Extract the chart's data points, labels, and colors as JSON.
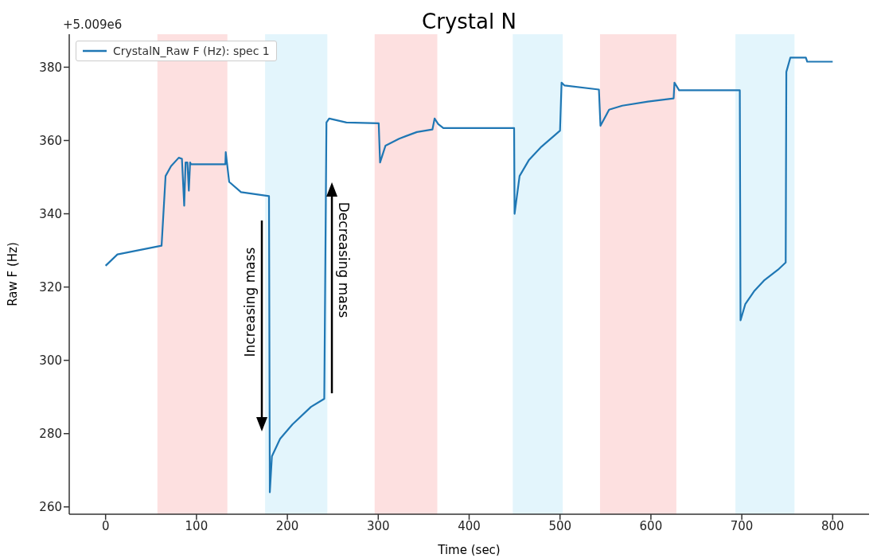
{
  "chart_data": {
    "type": "line",
    "title": "Crystal N",
    "xlabel": "Time (sec)",
    "ylabel": "Raw F (Hz)",
    "xlim": [
      -40,
      840
    ],
    "xticks": [
      0,
      100,
      200,
      300,
      400,
      500,
      600,
      700,
      800
    ],
    "ylim": [
      258,
      389
    ],
    "yticks": [
      260,
      280,
      300,
      320,
      340,
      360,
      380
    ],
    "legend": "top left",
    "marker": "none",
    "line_style": "solid",
    "series": [
      {
        "name": "CrystalN_Raw F (Hz): spec 1",
        "color": "#1f77b4",
        "x": [
          0,
          13,
          61.6,
          62,
          66,
          72,
          80.5,
          84,
          86.5,
          88,
          89,
          90,
          91.6,
          93,
          94,
          131.8,
          132.2,
          136,
          149,
          179.8,
          180.7,
          183,
          192,
          205.5,
          226,
          240.6,
          243,
          246,
          265,
          300.5,
          302,
          308,
          323,
          342.5,
          359.6,
          362,
          366,
          371.6,
          449.5,
          450,
          455.5,
          465.6,
          479.5,
          500,
          501.7,
          505,
          542.8,
          544.5,
          554,
          568.5,
          596.7,
          625,
          625.9,
          631,
          697.8,
          698.6,
          703.8,
          714,
          725,
          739.7,
          748.3,
          749,
          753.4,
          770.5,
          772,
          800
        ],
        "values": [
          325.8,
          328.9,
          331.3,
          333,
          350.3,
          353,
          355.3,
          355,
          342.2,
          354,
          354,
          354,
          346.3,
          354,
          353.5,
          353.5,
          356.8,
          348.7,
          345.9,
          344.8,
          264,
          273.8,
          278.6,
          282.5,
          287.3,
          289.5,
          364.9,
          366,
          364.9,
          364.7,
          354,
          358.6,
          360.5,
          362.3,
          363,
          366,
          364.5,
          363.4,
          363.4,
          340,
          350.3,
          354.6,
          358.3,
          362.7,
          375.8,
          375,
          373.9,
          364,
          368.4,
          369.5,
          370.6,
          371.5,
          375.8,
          373.7,
          373.7,
          310.9,
          315.3,
          319,
          321.9,
          324.7,
          326.7,
          378.7,
          382.6,
          382.6,
          381.5,
          381.5
        ]
      }
    ],
    "bands": [
      {
        "axis": "x",
        "from": 57,
        "to": 134,
        "color": "#fde0e0"
      },
      {
        "axis": "x",
        "from": 175.5,
        "to": 244,
        "color": "#e3f5fc"
      },
      {
        "axis": "x",
        "from": 296,
        "to": 365,
        "color": "#fde0e0"
      },
      {
        "axis": "x",
        "from": 448,
        "to": 503,
        "color": "#e3f5fc"
      },
      {
        "axis": "x",
        "from": 544,
        "to": 628,
        "color": "#fde0e0"
      },
      {
        "axis": "x",
        "from": 693,
        "to": 758,
        "color": "#e3f5fc"
      }
    ],
    "annotations": [
      "+5.009e6",
      "Increasing mass",
      "Decreasing mass"
    ]
  }
}
